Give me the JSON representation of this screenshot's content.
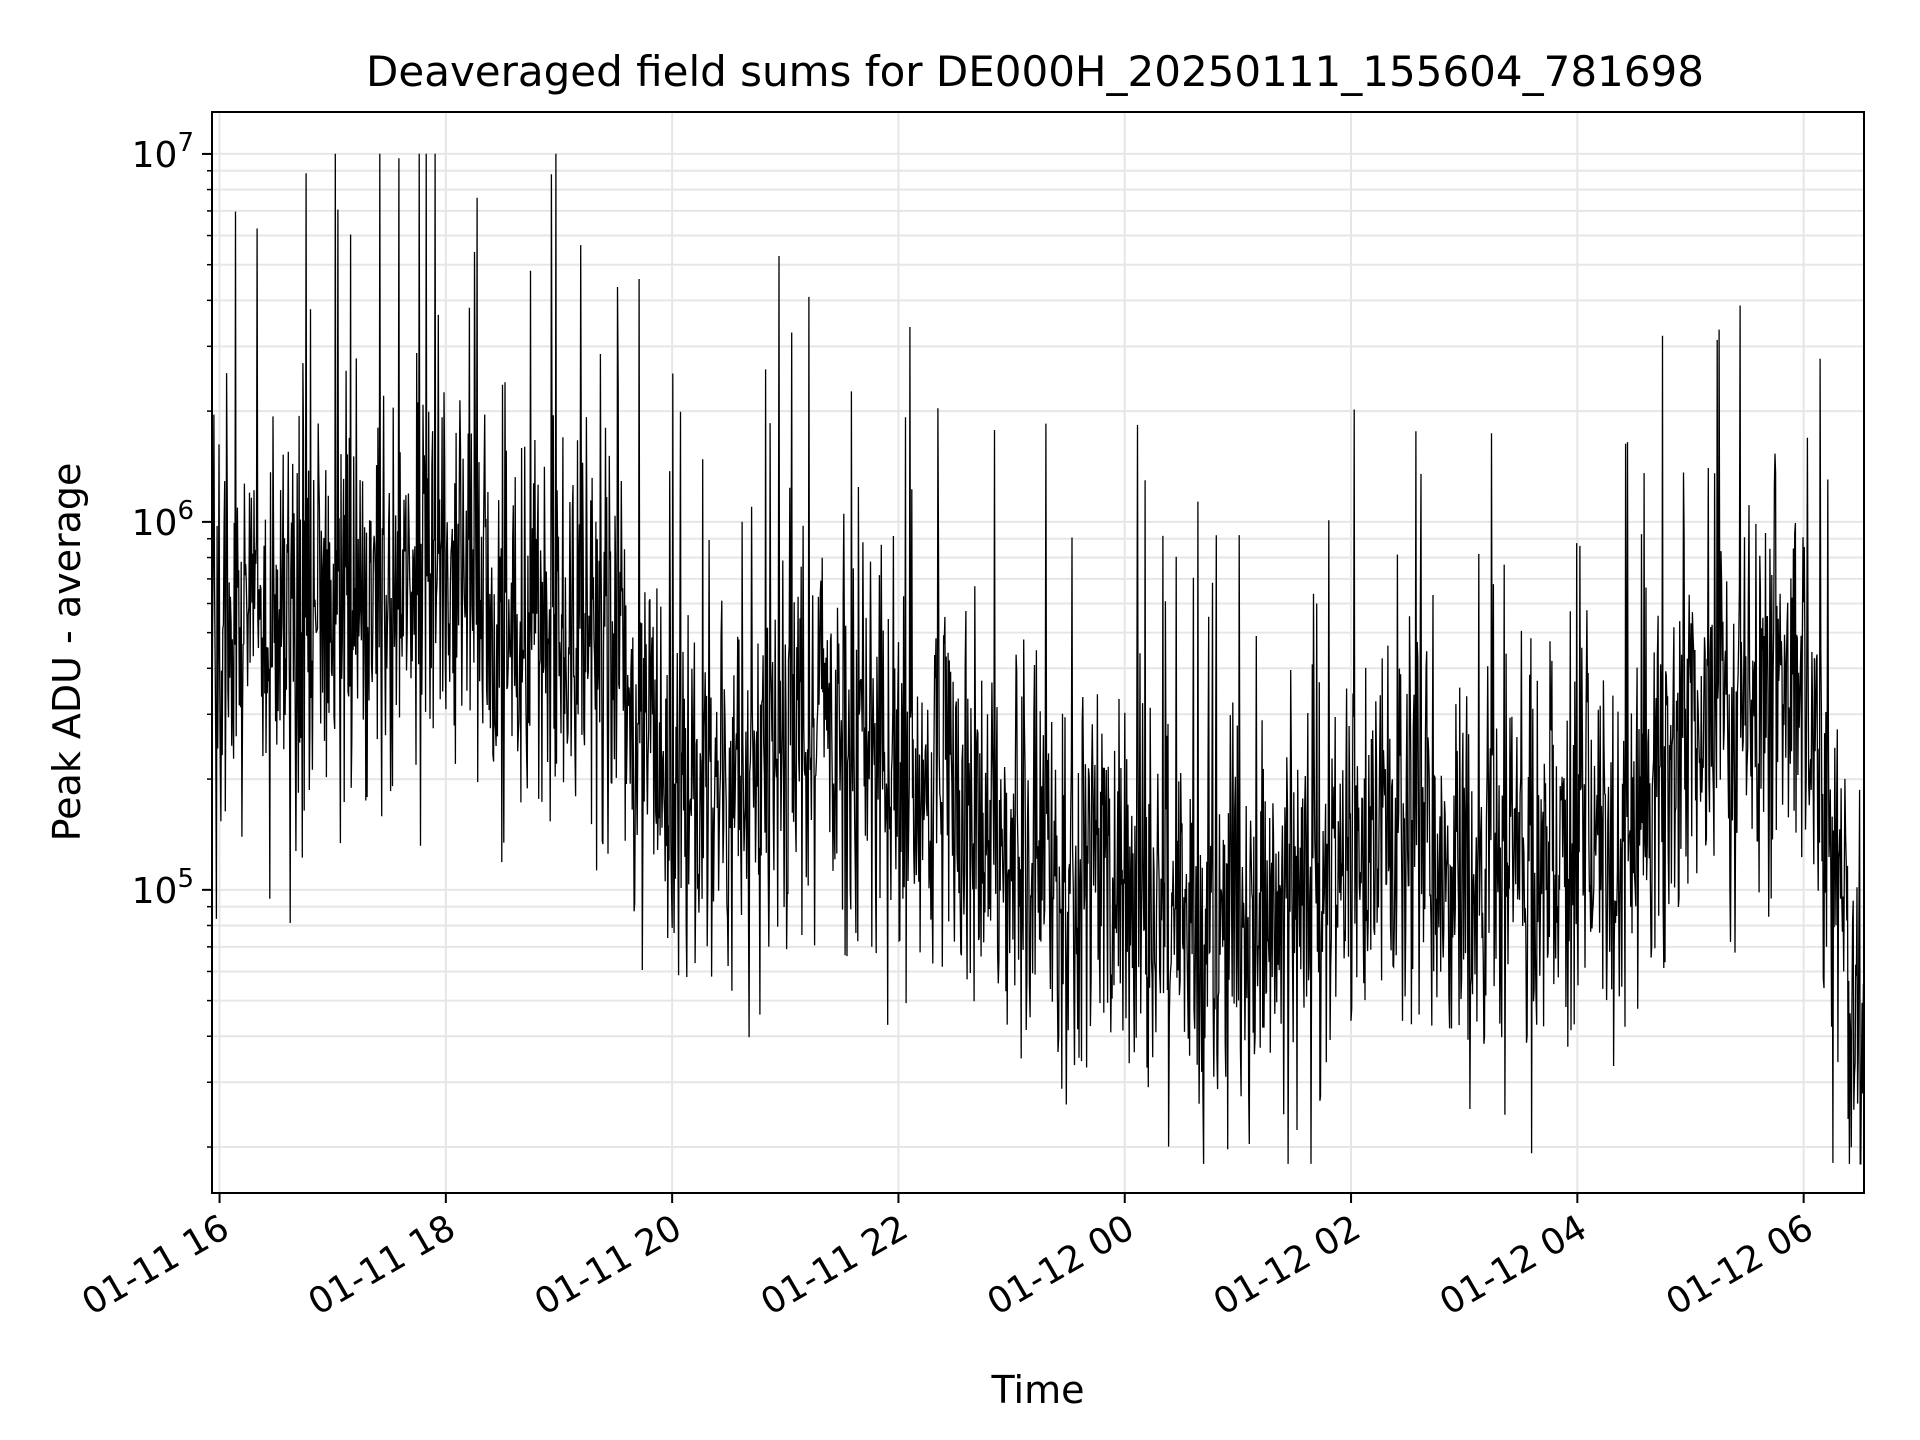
{
  "chart_data": {
    "type": "line",
    "title": "Deaveraged field sums for DE000H_20250111_155604_781698",
    "xlabel": "Time",
    "ylabel": "Peak ADU - average",
    "yscale": "log",
    "ylim": [
      15000,
      13000000
    ],
    "xlim": [
      "2025-01-11 15:56",
      "2025-01-12 06:32"
    ],
    "x_ticks": [
      {
        "value": "2025-01-11 16:00",
        "label": "01-11 16"
      },
      {
        "value": "2025-01-11 18:00",
        "label": "01-11 18"
      },
      {
        "value": "2025-01-11 20:00",
        "label": "01-11 20"
      },
      {
        "value": "2025-01-11 22:00",
        "label": "01-11 22"
      },
      {
        "value": "2025-01-12 00:00",
        "label": "01-12 00"
      },
      {
        "value": "2025-01-12 02:00",
        "label": "01-12 02"
      },
      {
        "value": "2025-01-12 04:00",
        "label": "01-12 04"
      },
      {
        "value": "2025-01-12 06:00",
        "label": "01-12 06"
      }
    ],
    "y_ticks": [
      {
        "value": 100000,
        "base": "10",
        "exp": "5"
      },
      {
        "value": 1000000,
        "base": "10",
        "exp": "6"
      },
      {
        "value": 10000000,
        "base": "10",
        "exp": "7"
      }
    ],
    "grid": true,
    "line_color": "#000000",
    "series": [
      {
        "x": [
          "2025-01-11 15:56",
          "2025-01-11 16:30",
          "2025-01-11 17:00",
          "2025-01-11 17:30",
          "2025-01-11 18:00",
          "2025-01-11 18:30",
          "2025-01-11 19:00",
          "2025-01-11 19:30",
          "2025-01-11 20:00",
          "2025-01-11 20:30",
          "2025-01-11 21:00",
          "2025-01-11 21:30",
          "2025-01-11 22:00",
          "2025-01-11 22:30",
          "2025-01-11 23:00",
          "2025-01-11 23:30",
          "2025-01-12 00:00",
          "2025-01-12 00:30",
          "2025-01-12 01:00",
          "2025-01-12 01:30",
          "2025-01-12 02:00",
          "2025-01-12 02:30",
          "2025-01-12 03:00",
          "2025-01-12 03:30",
          "2025-01-12 04:00",
          "2025-01-12 04:30",
          "2025-01-12 05:00",
          "2025-01-12 05:30",
          "2025-01-12 06:00",
          "2025-01-12 06:32"
        ],
        "y": [
          500000,
          500000,
          600000,
          600000,
          800000,
          500000,
          500000,
          400000,
          200000,
          200000,
          250000,
          300000,
          200000,
          180000,
          120000,
          100000,
          100000,
          80000,
          80000,
          90000,
          120000,
          150000,
          100000,
          120000,
          130000,
          130000,
          250000,
          300000,
          400000,
          30000
        ]
      }
    ]
  }
}
